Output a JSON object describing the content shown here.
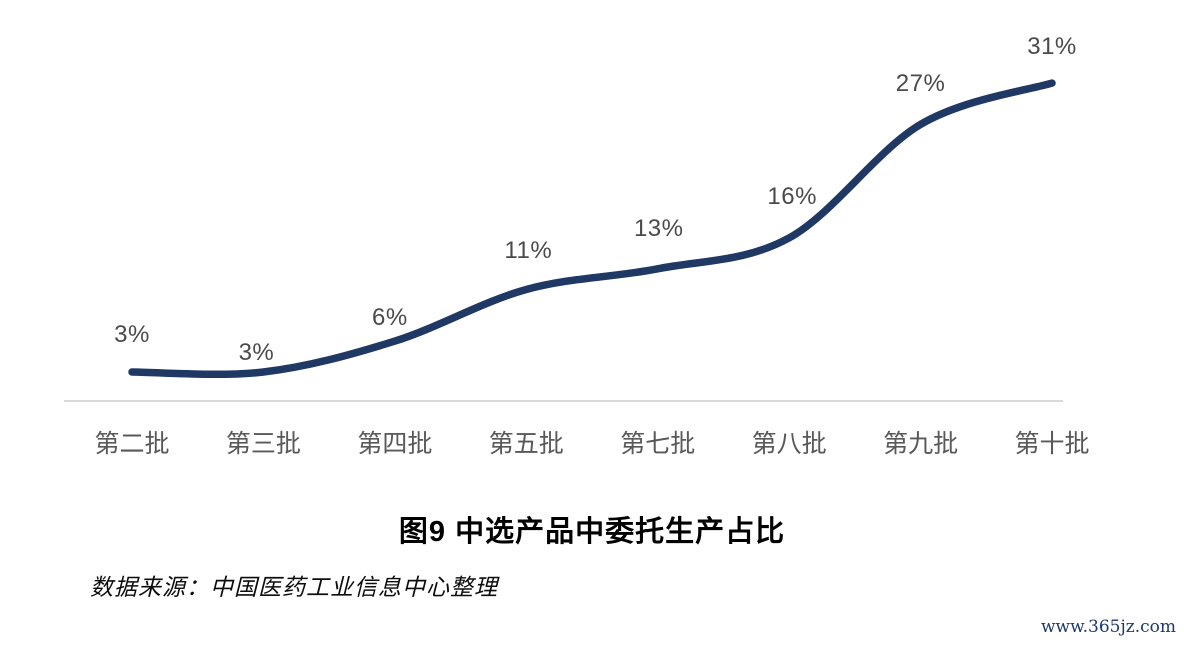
{
  "figure": {
    "title": "图9 中选产品中委托生产占比",
    "source": "数据来源：中国医药工业信息中心整理"
  },
  "page": {
    "watermark": "www.365jz.com"
  },
  "chart_data": {
    "type": "line",
    "title": "图9 中选产品中委托生产占比",
    "categories": [
      "第二批",
      "第三批",
      "第四批",
      "第五批",
      "第七批",
      "第八批",
      "第九批",
      "第十批"
    ],
    "values": [
      3,
      3,
      6,
      11,
      13,
      16,
      27,
      31
    ],
    "labels": [
      "3%",
      "3%",
      "6%",
      "11%",
      "13%",
      "16%",
      "27%",
      "31%"
    ],
    "xlabel": "",
    "ylabel": "",
    "ylim": [
      0,
      39
    ],
    "grid": false,
    "legend": false,
    "smoothed": true,
    "line_color": "#1f3864",
    "axis_color": "#d9d9d9",
    "data_label_color": "#4a4a4a",
    "tick_label_color": "#595959"
  }
}
